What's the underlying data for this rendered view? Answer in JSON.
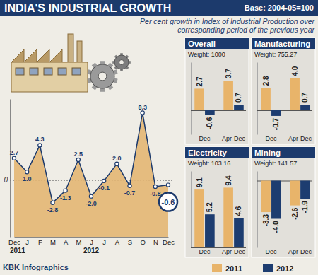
{
  "chart_data": [
    {
      "type": "area",
      "title": "INDIA'S INDUSTRIAL GROWTH",
      "subtitle": "Per cent growth in Index of Industrial Production over corresponding period of the previous year",
      "annotations": [
        "Base: 2004-05=100",
        "2011",
        "2012",
        "KBK Infographics"
      ],
      "categories": [
        "Dec",
        "J",
        "F",
        "M",
        "A",
        "M",
        "J",
        "J",
        "A",
        "S",
        "O",
        "N",
        "Dec"
      ],
      "values": [
        2.7,
        1.0,
        4.3,
        -2.8,
        -1.3,
        2.5,
        -2.0,
        -0.1,
        2.0,
        -0.7,
        8.3,
        -0.8,
        -0.6
      ],
      "value_labels": [
        "2.7",
        "1.0",
        "4.3",
        "-2.8",
        "-1.3",
        "2.5",
        "-2.0",
        "-0.1",
        "2.0",
        "-0.7",
        "8.3",
        "-0.8",
        "-0.6"
      ],
      "color": "#e3b673",
      "marker": "circle",
      "data_labels": true,
      "ylim": [
        -7,
        10
      ],
      "yticks": [
        0
      ],
      "grid": true
    },
    {
      "type": "bar",
      "title": "Overall",
      "subtitle": "Weight: 1000",
      "categories": [
        "Dec",
        "Apr-Dec"
      ],
      "series": [
        {
          "name": "2011",
          "color": "#e8b46a",
          "values": [
            2.7,
            3.7
          ],
          "value_labels": [
            "2.7",
            "3.7"
          ]
        },
        {
          "name": "2012",
          "color": "#1d3d70",
          "values": [
            -0.6,
            0.7
          ],
          "value_labels": [
            "-0.6",
            "0.7"
          ]
        }
      ],
      "ylim": [
        -3,
        6
      ],
      "yticks": [
        0
      ],
      "tick_labels": "x",
      "data_labels": true
    },
    {
      "type": "bar",
      "title": "Manufacturing",
      "subtitle": "Weight: 755.27",
      "categories": [
        "Dec",
        "Apr-Dec"
      ],
      "series": [
        {
          "name": "2011",
          "color": "#e8b46a",
          "values": [
            2.8,
            4.0
          ],
          "value_labels": [
            "2.8",
            "4.0"
          ]
        },
        {
          "name": "2012",
          "color": "#1d3d70",
          "values": [
            -0.7,
            0.7
          ],
          "value_labels": [
            "-0.7",
            "0.7"
          ]
        }
      ],
      "ylim": [
        -3,
        6
      ],
      "yticks": [
        0
      ],
      "tick_labels": "x",
      "data_labels": true
    },
    {
      "type": "bar",
      "title": "Electricity",
      "subtitle": "Weight: 103.16",
      "categories": [
        "Dec",
        "Apr-Dec"
      ],
      "series": [
        {
          "name": "2011",
          "color": "#e8b46a",
          "values": [
            9.1,
            9.4
          ],
          "value_labels": [
            "9.1",
            "9.4"
          ]
        },
        {
          "name": "2012",
          "color": "#1d3d70",
          "values": [
            5.2,
            4.6
          ],
          "value_labels": [
            "5.2",
            "4.6"
          ]
        }
      ],
      "ylim": [
        0,
        12
      ],
      "yticks": [
        0
      ],
      "tick_labels": "x",
      "data_labels": true
    },
    {
      "type": "bar",
      "title": "Mining",
      "subtitle": "Weight: 141.57",
      "categories": [
        "Dec",
        "Apr-Dec"
      ],
      "series": [
        {
          "name": "2011",
          "color": "#e8b46a",
          "values": [
            -3.3,
            -2.6
          ],
          "value_labels": [
            "-3.3",
            "-2.6"
          ]
        },
        {
          "name": "2012",
          "color": "#1d3d70",
          "values": [
            -4.0,
            -1.9
          ],
          "value_labels": [
            "-4.0",
            "-1.9"
          ]
        }
      ],
      "ylim": [
        -7,
        1
      ],
      "yticks": [
        0
      ],
      "tick_labels": "x",
      "data_labels": true,
      "legend": "bottom"
    }
  ]
}
